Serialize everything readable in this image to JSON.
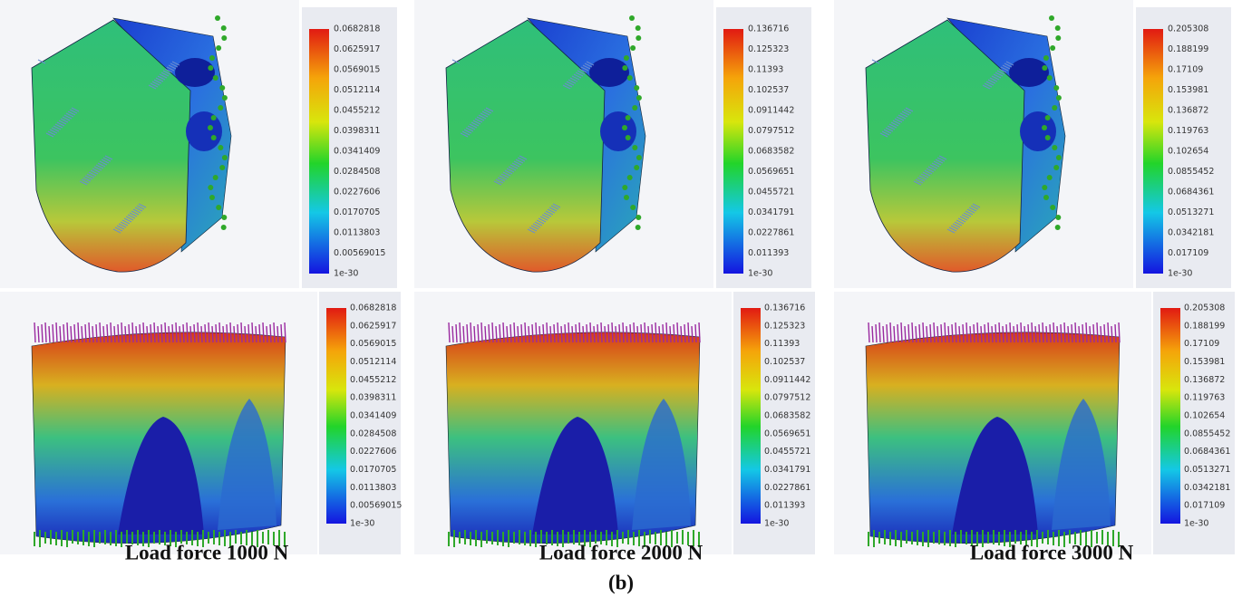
{
  "figure": {
    "columns": [
      {
        "caption": "Load force 1000 N",
        "scale": [
          "0.0682818",
          "0.0625917",
          "0.0569015",
          "0.0512114",
          "0.0455212",
          "0.0398311",
          "0.0341409",
          "0.0284508",
          "0.0227606",
          "0.0170705",
          "0.0113803",
          "0.00569015",
          "1e-30"
        ]
      },
      {
        "caption": "Load force 2000 N",
        "scale": [
          "0.136716",
          "0.125323",
          "0.11393",
          "0.102537",
          "0.0911442",
          "0.0797512",
          "0.0683582",
          "0.0569651",
          "0.0455721",
          "0.0341791",
          "0.0227861",
          "0.011393",
          "1e-30"
        ]
      },
      {
        "caption": "Load force 3000 N",
        "scale": [
          "0.205308",
          "0.188199",
          "0.17109",
          "0.153981",
          "0.136872",
          "0.119763",
          "0.102654",
          "0.0855452",
          "0.0684361",
          "0.0513271",
          "0.0342181",
          "0.017109",
          "1e-30"
        ]
      }
    ],
    "label": "(b)"
  }
}
